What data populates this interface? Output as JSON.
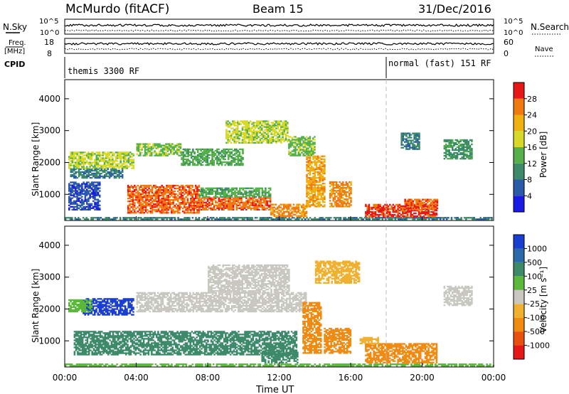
{
  "header": {
    "station": "McMurdo (fitACF)",
    "beam": "Beam 15",
    "date": "31/Dec/2016"
  },
  "top_panels": {
    "nsky_label": "N.Sky",
    "nsky_ticks": [
      "10^5",
      "10^0"
    ],
    "nsearch_label": "N.Search",
    "nsearch_ticks": [
      "10^5",
      "10^0"
    ],
    "freq_label_1": "Freq.",
    "freq_label_2": "[MHz]",
    "freq_ticks": [
      "18",
      "8"
    ],
    "nave_label": "Nave",
    "nave_ticks": [
      "60",
      "0"
    ],
    "cpid_label": "CPID",
    "cpid_segments": [
      {
        "label": "themis 3300 RF",
        "start_hour": 0
      },
      {
        "label": "normal (fast) 151 RF",
        "start_hour": 18
      }
    ]
  },
  "chart_data": [
    {
      "type": "heatmap",
      "title": "Power",
      "ylabel": "Slant Range [km]",
      "xlabel": "",
      "x_range_hours": [
        0,
        24
      ],
      "ylim": [
        180,
        4600
      ],
      "yticks": [
        "1000",
        "2000",
        "3000",
        "4000"
      ],
      "colorbar_label": "Power [dB]",
      "colorbar_ticks": [
        "4",
        "8",
        "12",
        "16",
        "20",
        "24",
        "28"
      ],
      "colorbar_range": [
        0,
        32
      ],
      "colors": [
        "#1a1ae6",
        "#2a5aa8",
        "#3d8a6a",
        "#55b04a",
        "#d8d828",
        "#f0b010",
        "#f07a10",
        "#e81818"
      ],
      "regions": [
        {
          "t": [
            0.2,
            3.8
          ],
          "r": [
            1800,
            2300
          ],
          "value": 16
        },
        {
          "t": [
            0.3,
            3.2
          ],
          "r": [
            1500,
            1800
          ],
          "value": 8
        },
        {
          "t": [
            4.0,
            6.5
          ],
          "r": [
            2200,
            2600
          ],
          "value": 14
        },
        {
          "t": [
            6.5,
            10.0
          ],
          "r": [
            1900,
            2400
          ],
          "value": 12
        },
        {
          "t": [
            9.0,
            12.5
          ],
          "r": [
            2600,
            3300
          ],
          "value": 16
        },
        {
          "t": [
            12.5,
            14.0
          ],
          "r": [
            2200,
            2800
          ],
          "value": 14
        },
        {
          "t": [
            13.5,
            14.5
          ],
          "r": [
            600,
            2200
          ],
          "value": 22
        },
        {
          "t": [
            3.5,
            7.5
          ],
          "r": [
            400,
            1300
          ],
          "value": 26
        },
        {
          "t": [
            7.5,
            11.5
          ],
          "r": [
            500,
            900
          ],
          "value": 26
        },
        {
          "t": [
            7.5,
            11.5
          ],
          "r": [
            900,
            1200
          ],
          "value": 12
        },
        {
          "t": [
            11.5,
            13.5
          ],
          "r": [
            300,
            700
          ],
          "value": 24
        },
        {
          "t": [
            14.8,
            16.0
          ],
          "r": [
            600,
            1400
          ],
          "value": 24
        },
        {
          "t": [
            16.8,
            20.8
          ],
          "r": [
            250,
            700
          ],
          "value": 28
        },
        {
          "t": [
            19.0,
            20.8
          ],
          "r": [
            500,
            850
          ],
          "value": 26
        },
        {
          "t": [
            18.8,
            19.8
          ],
          "r": [
            2400,
            2900
          ],
          "value": 8
        },
        {
          "t": [
            21.2,
            22.8
          ],
          "r": [
            2100,
            2700
          ],
          "value": 10
        },
        {
          "t": [
            0.2,
            2.0
          ],
          "r": [
            500,
            1400
          ],
          "value": 4
        },
        {
          "t": [
            0.0,
            24.0
          ],
          "r": [
            200,
            260
          ],
          "value": 8
        }
      ]
    },
    {
      "type": "heatmap",
      "title": "Velocity",
      "ylabel": "Slant Range [km]",
      "xlabel": "Time UT",
      "x_range_hours": [
        0,
        24
      ],
      "ylim": [
        180,
        4600
      ],
      "yticks": [
        "1000",
        "2000",
        "3000",
        "4000"
      ],
      "xticks": [
        "00:00",
        "04:00",
        "08:00",
        "12:00",
        "16:00",
        "20:00",
        "00:00"
      ],
      "colorbar_label": "Velocity [m s⁻¹]",
      "colorbar_ticks": [
        "1000",
        "500",
        "100",
        "25",
        "-25",
        "-100",
        "-500",
        "-1000"
      ],
      "colors": [
        "#1a3ed0",
        "#2a6aa8",
        "#3d8a6a",
        "#5ab83a",
        "#c8c8c0",
        "#f0b030",
        "#f08a10",
        "#e85010",
        "#e81818"
      ],
      "regions": [
        {
          "t": [
            1.0,
            3.8
          ],
          "r": [
            1800,
            2300
          ],
          "value": 700
        },
        {
          "t": [
            0.2,
            1.5
          ],
          "r": [
            1900,
            2300
          ],
          "value": 40
        },
        {
          "t": [
            4.0,
            13.5
          ],
          "r": [
            1900,
            2500
          ],
          "value": 0
        },
        {
          "t": [
            8.0,
            12.5
          ],
          "r": [
            2500,
            3400
          ],
          "value": 0
        },
        {
          "t": [
            0.5,
            13.0
          ],
          "r": [
            550,
            1300
          ],
          "value": 200
        },
        {
          "t": [
            11.0,
            13.0
          ],
          "r": [
            300,
            700
          ],
          "value": 150
        },
        {
          "t": [
            13.3,
            14.3
          ],
          "r": [
            600,
            2200
          ],
          "value": -300
        },
        {
          "t": [
            14.5,
            16.0
          ],
          "r": [
            600,
            1400
          ],
          "value": -200
        },
        {
          "t": [
            16.8,
            20.8
          ],
          "r": [
            300,
            900
          ],
          "value": -300
        },
        {
          "t": [
            16.5,
            17.5
          ],
          "r": [
            900,
            1100
          ],
          "value": -80
        },
        {
          "t": [
            21.2,
            22.8
          ],
          "r": [
            2100,
            2700
          ],
          "value": 0
        },
        {
          "t": [
            14.0,
            16.5
          ],
          "r": [
            2800,
            3500
          ],
          "value": -60
        },
        {
          "t": [
            0.0,
            24.0
          ],
          "r": [
            200,
            260
          ],
          "value": 50
        }
      ]
    }
  ]
}
